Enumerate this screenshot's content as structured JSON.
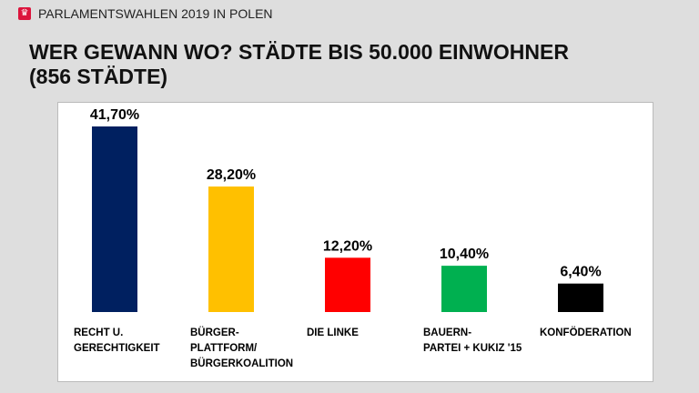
{
  "header": {
    "subtitle": "PARLAMENTSWAHLEN 2019 IN POLEN",
    "logo_icon": "polish-eagle-icon",
    "title_line1": "WER GEWANN WO? STÄDTE BIS 50.000 EINWOHNER",
    "title_line2": "(856 STÄDTE)"
  },
  "chart_data": {
    "type": "bar",
    "categories": [
      [
        "RECHT U.",
        "GERECHTIGKEIT"
      ],
      [
        "BÜRGER-",
        "PLATTFORM/",
        "BÜRGERKOALITION"
      ],
      [
        "DIE LINKE"
      ],
      [
        "BAUERN-",
        "PARTEI + KUKIZ '15"
      ],
      [
        "KONFÖDERATION"
      ]
    ],
    "values": [
      41.7,
      28.2,
      12.2,
      10.4,
      6.4
    ],
    "labels": [
      "41,70%",
      "28,20%",
      "12,20%",
      "10,40%",
      "6,40%"
    ],
    "colors": [
      "#002060",
      "#ffc000",
      "#ff0000",
      "#00b050",
      "#000000"
    ],
    "ylim": [
      0,
      45
    ],
    "grid": false,
    "legend": "none"
  }
}
